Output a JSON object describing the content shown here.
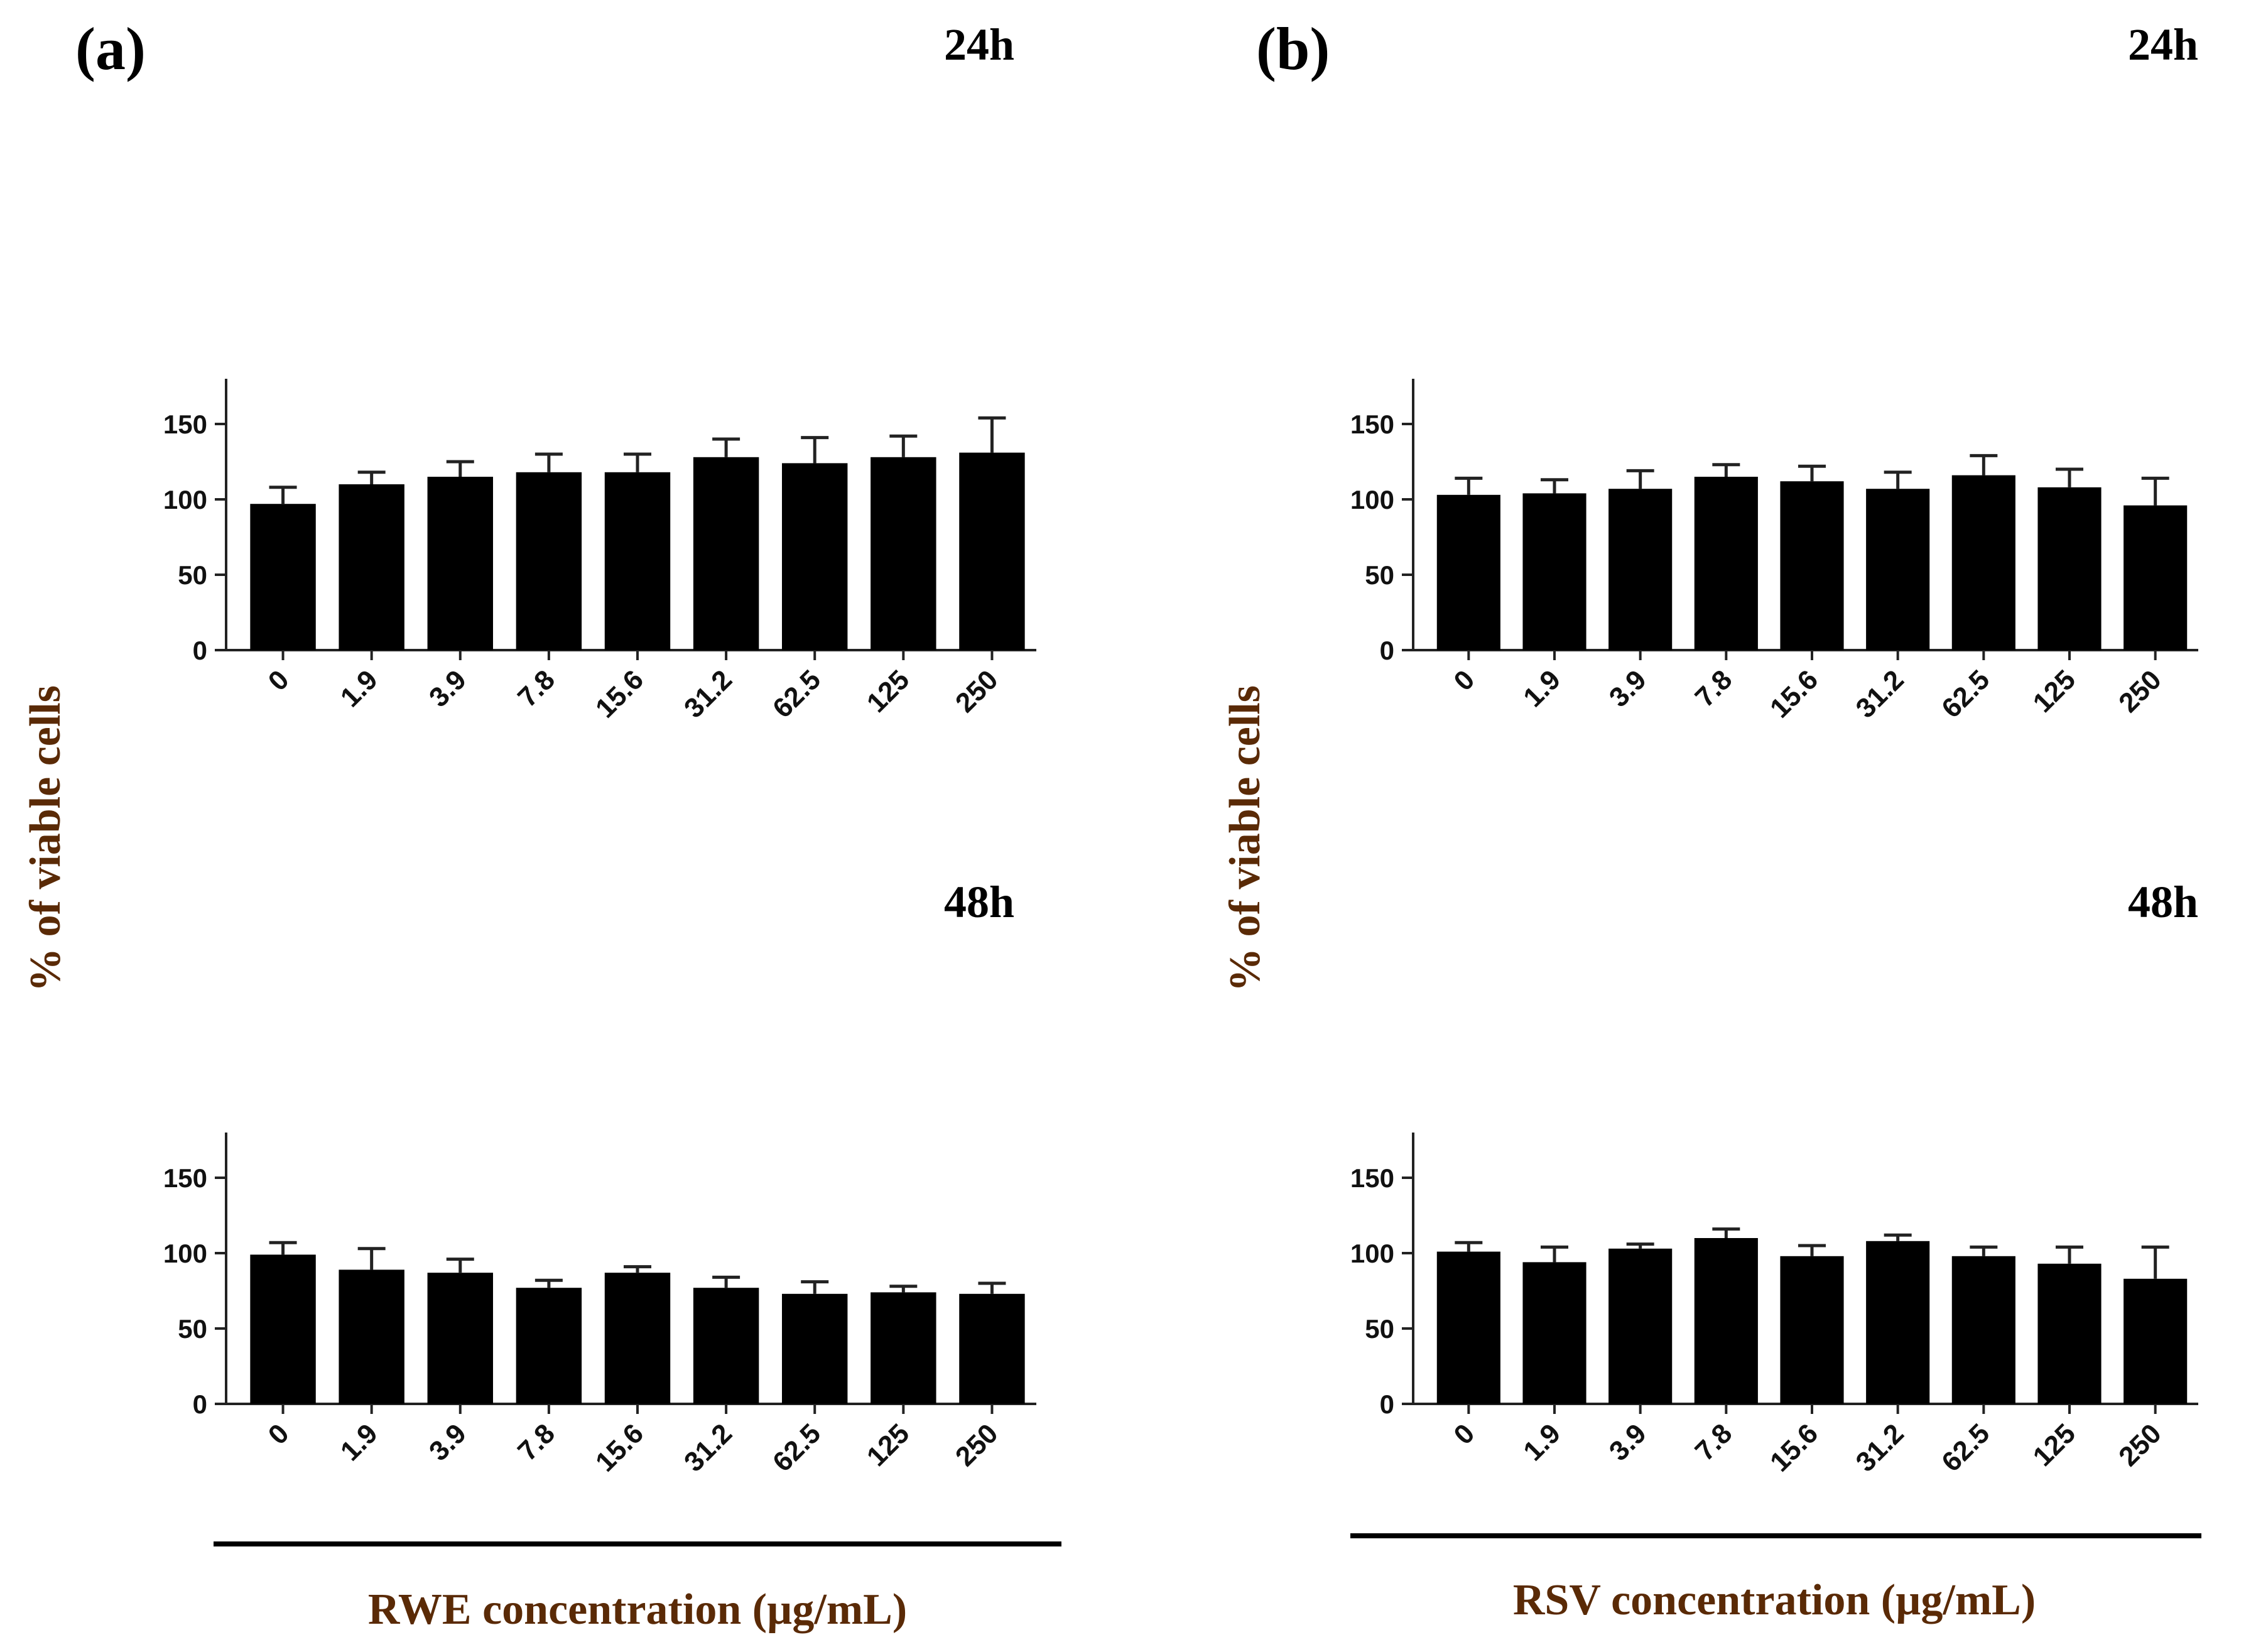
{
  "panels": [
    {
      "letter": "(a)",
      "x_label": "RWE concentration (µg/mL)"
    },
    {
      "letter": "(b)",
      "x_label": "RSV concentration (µg/mL)"
    }
  ],
  "y_axis_label": "% of viable cells",
  "colors": {
    "bars": "#000000",
    "axis_label": "#5a2a06"
  },
  "chart_data": [
    {
      "type": "bar",
      "panel": "(a)",
      "title": "24h",
      "categories": [
        "0",
        "1.9",
        "3.9",
        "7.8",
        "15.6",
        "31.2",
        "62.5",
        "125",
        "250"
      ],
      "values": [
        97,
        110,
        115,
        118,
        118,
        128,
        124,
        128,
        131
      ],
      "error": [
        11,
        8,
        10,
        12,
        12,
        12,
        17,
        14,
        23
      ],
      "xlabel": "RWE concentration (µg/mL)",
      "ylabel": "% of viable cells",
      "ylim": [
        0,
        180
      ],
      "yticks": [
        0,
        50,
        100,
        150
      ]
    },
    {
      "type": "bar",
      "panel": "(b)",
      "title": "24h",
      "categories": [
        "0",
        "1.9",
        "3.9",
        "7.8",
        "15.6",
        "31.2",
        "62.5",
        "125",
        "250"
      ],
      "values": [
        103,
        104,
        107,
        115,
        112,
        107,
        116,
        108,
        96
      ],
      "error": [
        11,
        9,
        12,
        8,
        10,
        11,
        13,
        12,
        18
      ],
      "xlabel": "RSV concentration (µg/mL)",
      "ylabel": "% of viable cells",
      "ylim": [
        0,
        180
      ],
      "yticks": [
        0,
        50,
        100,
        150
      ]
    },
    {
      "type": "bar",
      "panel": "(a)",
      "title": "48h",
      "categories": [
        "0",
        "1.9",
        "3.9",
        "7.8",
        "15.6",
        "31.2",
        "62.5",
        "125",
        "250"
      ],
      "values": [
        99,
        89,
        87,
        77,
        87,
        77,
        73,
        74,
        73
      ],
      "error": [
        8,
        14,
        9,
        5,
        4,
        7,
        8,
        4,
        7
      ],
      "xlabel": "RWE concentration (µg/mL)",
      "ylabel": "% of viable cells",
      "ylim": [
        0,
        180
      ],
      "yticks": [
        0,
        50,
        100,
        150
      ]
    },
    {
      "type": "bar",
      "panel": "(b)",
      "title": "48h",
      "categories": [
        "0",
        "1.9",
        "3.9",
        "7.8",
        "15.6",
        "31.2",
        "62.5",
        "125",
        "250"
      ],
      "values": [
        101,
        94,
        103,
        110,
        98,
        108,
        98,
        93,
        83
      ],
      "error": [
        6,
        10,
        3,
        6,
        7,
        4,
        6,
        11,
        21
      ],
      "xlabel": "RSV concentration (µg/mL)",
      "ylabel": "% of viable cells",
      "ylim": [
        0,
        180
      ],
      "yticks": [
        0,
        50,
        100,
        150
      ]
    }
  ]
}
